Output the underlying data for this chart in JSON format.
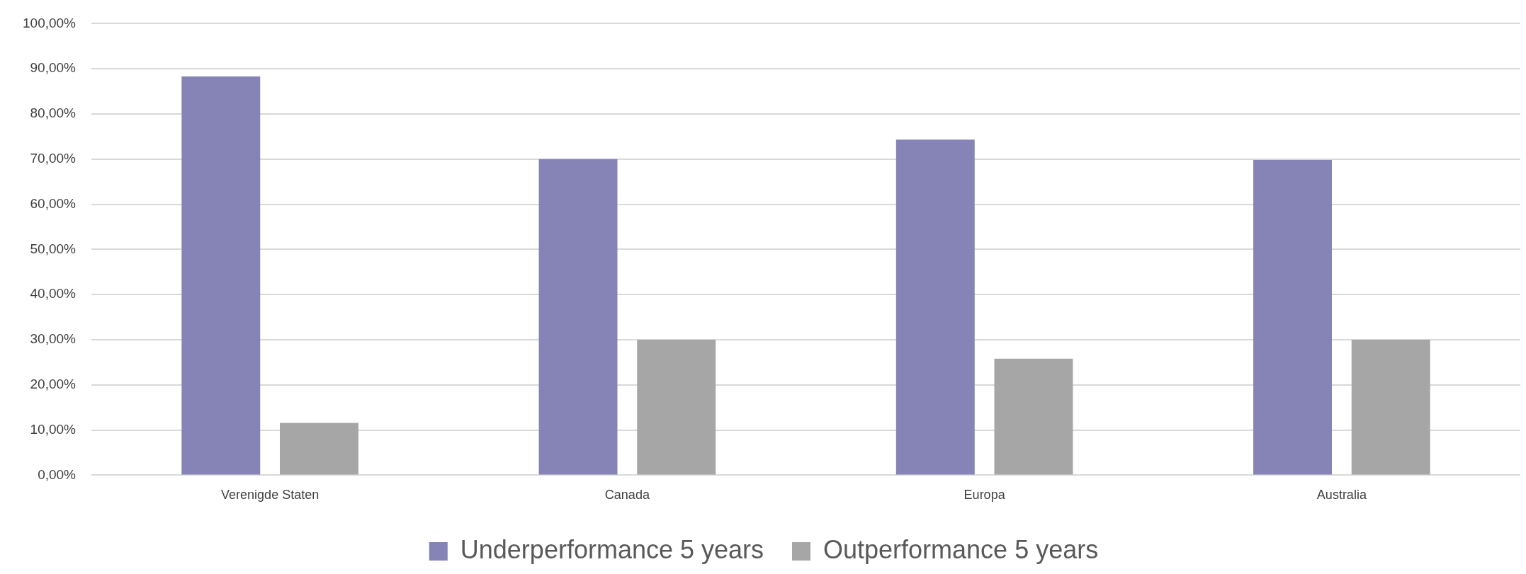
{
  "chart_data": {
    "type": "bar",
    "categories": [
      "Verenigde Staten",
      "Canada",
      "Europa",
      "Australia"
    ],
    "series": [
      {
        "name": "Underperformance 5 years",
        "color": "#8684b6",
        "values": [
          88.3,
          70,
          74.3,
          69.8
        ]
      },
      {
        "name": "Outperformance 5 years",
        "color": "#a6a6a6",
        "values": [
          11.6,
          30,
          25.8,
          30
        ]
      }
    ],
    "ylim": [
      0,
      100
    ],
    "yticks": [
      {
        "value": 0,
        "label": "0,00%"
      },
      {
        "value": 10,
        "label": "10,00%"
      },
      {
        "value": 20,
        "label": "20,00%"
      },
      {
        "value": 30,
        "label": "30,00%"
      },
      {
        "value": 40,
        "label": "40,00%"
      },
      {
        "value": 50,
        "label": "50,00%"
      },
      {
        "value": 60,
        "label": "60,00%"
      },
      {
        "value": 70,
        "label": "70,00%"
      },
      {
        "value": 80,
        "label": "80,00%"
      },
      {
        "value": 90,
        "label": "90,00%"
      },
      {
        "value": 100,
        "label": "100,00%"
      }
    ],
    "grid": "y",
    "legend": "bottom"
  }
}
